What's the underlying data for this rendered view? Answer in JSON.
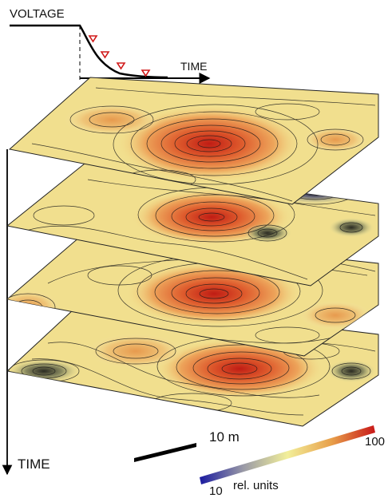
{
  "inset": {
    "voltage_label": "VOLTAGE",
    "time_label": "TIME",
    "marker_count": 4
  },
  "main_axis": {
    "time_label": "TIME"
  },
  "scale_bar": {
    "label": "10 m"
  },
  "colorbar": {
    "min_label": "10",
    "max_label": "100",
    "units_label": "rel. units",
    "colors": [
      "#1a1aa0",
      "#9a9aa6",
      "#f2ef9a",
      "#e8a04a",
      "#c81818"
    ]
  },
  "slices": [
    {
      "index": 1,
      "hotspots": [
        "red-core-center"
      ]
    },
    {
      "index": 2,
      "hotspots": [
        "red-core-center",
        "blue-low-back-right",
        "dark-low-left"
      ]
    },
    {
      "index": 3,
      "hotspots": [
        "red-core-center",
        "orange-left-edge"
      ]
    },
    {
      "index": 4,
      "hotspots": [
        "red-core-center",
        "dark-low-left",
        "dark-low-right"
      ]
    }
  ],
  "colors": {
    "marker": "#d11a1a",
    "axis": "#000000",
    "contour": "#1a1a1a"
  }
}
